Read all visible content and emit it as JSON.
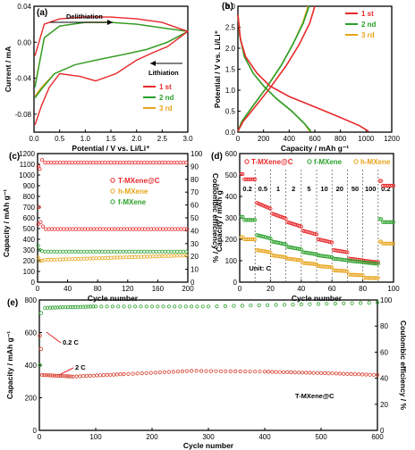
{
  "colors": {
    "first": "#e8282a",
    "second": "#2aa02b",
    "third": "#e8a318",
    "cycle": "#d63c2a"
  },
  "chart_data": [
    {
      "panel": "(a)",
      "type": "line",
      "xlabel": "Potential / V vs. Li/Li⁺",
      "ylabel": "Current / mA",
      "xlim": [
        0,
        3.0
      ],
      "ylim": [
        -0.1,
        0.04
      ],
      "xticks": [
        "0.0",
        "0.5",
        "1.0",
        "1.5",
        "2.0",
        "2.5",
        "3.0"
      ],
      "yticks": [
        "0.04",
        "0.00",
        "-0.04",
        "-0.08"
      ],
      "annotations": [
        "Delithiation",
        "Lithiation"
      ],
      "legend_position": "bottom-right",
      "series": [
        {
          "name": "1 st",
          "upper": [
            [
              0.02,
              -0.015
            ],
            [
              0.2,
              0.02
            ],
            [
              0.5,
              0.026
            ],
            [
              1.0,
              0.028
            ],
            [
              1.5,
              0.028
            ],
            [
              2.0,
              0.026
            ],
            [
              2.5,
              0.022
            ],
            [
              2.8,
              0.016
            ],
            [
              3.0,
              0.012
            ]
          ],
          "lower": [
            [
              3.0,
              0.012
            ],
            [
              2.6,
              -0.005
            ],
            [
              2.3,
              -0.012
            ],
            [
              2.0,
              -0.02
            ],
            [
              1.6,
              -0.035
            ],
            [
              1.2,
              -0.043
            ],
            [
              0.9,
              -0.038
            ],
            [
              0.5,
              -0.035
            ],
            [
              0.3,
              -0.05
            ],
            [
              0.15,
              -0.07
            ],
            [
              0.02,
              -0.092
            ]
          ]
        },
        {
          "name": "2 nd",
          "upper": [
            [
              0.02,
              -0.05
            ],
            [
              0.2,
              0.005
            ],
            [
              0.5,
              0.018
            ],
            [
              1.0,
              0.022
            ],
            [
              1.5,
              0.022
            ],
            [
              2.0,
              0.02
            ],
            [
              2.5,
              0.016
            ],
            [
              3.0,
              0.012
            ]
          ],
          "lower": [
            [
              3.0,
              0.012
            ],
            [
              2.6,
              0.0
            ],
            [
              2.2,
              -0.008
            ],
            [
              1.8,
              -0.013
            ],
            [
              1.2,
              -0.02
            ],
            [
              0.8,
              -0.025
            ],
            [
              0.4,
              -0.035
            ],
            [
              0.15,
              -0.052
            ],
            [
              0.02,
              -0.062
            ]
          ]
        },
        {
          "name": "3 rd",
          "upper": [
            [
              0.02,
              -0.048
            ],
            [
              0.2,
              0.005
            ],
            [
              0.5,
              0.018
            ],
            [
              1.0,
              0.022
            ],
            [
              1.5,
              0.022
            ],
            [
              2.0,
              0.02
            ],
            [
              2.5,
              0.016
            ],
            [
              3.0,
              0.012
            ]
          ],
          "lower": [
            [
              3.0,
              0.012
            ],
            [
              2.6,
              0.0
            ],
            [
              2.2,
              -0.008
            ],
            [
              1.8,
              -0.013
            ],
            [
              1.2,
              -0.02
            ],
            [
              0.8,
              -0.025
            ],
            [
              0.4,
              -0.035
            ],
            [
              0.15,
              -0.05
            ],
            [
              0.02,
              -0.06
            ]
          ]
        }
      ]
    },
    {
      "panel": "(b)",
      "type": "line",
      "xlabel": "Capacity / mAh g⁻¹",
      "ylabel": "Potential / V vs. Li/Li⁺",
      "xlim": [
        0,
        1200
      ],
      "ylim": [
        0,
        3.0
      ],
      "xticks": [
        "0",
        "200",
        "400",
        "600",
        "800",
        "1000",
        "1200"
      ],
      "yticks": [
        "0.0",
        "0.5",
        "1.0",
        "1.5",
        "2.0",
        "2.5",
        "3.0"
      ],
      "legend_position": "top-right",
      "series": [
        {
          "name": "1 st",
          "discharge": [
            [
              0,
              2.8
            ],
            [
              20,
              2.2
            ],
            [
              60,
              1.8
            ],
            [
              150,
              1.4
            ],
            [
              250,
              1.1
            ],
            [
              400,
              0.85
            ],
            [
              600,
              0.6
            ],
            [
              800,
              0.35
            ],
            [
              950,
              0.15
            ],
            [
              1020,
              0.02
            ]
          ],
          "charge": [
            [
              0,
              0.02
            ],
            [
              40,
              0.25
            ],
            [
              120,
              0.55
            ],
            [
              250,
              1.05
            ],
            [
              380,
              1.6
            ],
            [
              480,
              2.1
            ],
            [
              560,
              2.6
            ],
            [
              600,
              3.0
            ]
          ]
        },
        {
          "name": "2 nd",
          "discharge": [
            [
              0,
              2.8
            ],
            [
              15,
              2.3
            ],
            [
              50,
              1.8
            ],
            [
              120,
              1.4
            ],
            [
              200,
              1.1
            ],
            [
              300,
              0.8
            ],
            [
              420,
              0.5
            ],
            [
              520,
              0.2
            ],
            [
              570,
              0.02
            ]
          ],
          "charge": [
            [
              0,
              0.02
            ],
            [
              30,
              0.25
            ],
            [
              100,
              0.55
            ],
            [
              220,
              1.05
            ],
            [
              340,
              1.6
            ],
            [
              430,
              2.1
            ],
            [
              510,
              2.6
            ],
            [
              555,
              3.0
            ]
          ]
        },
        {
          "name": "3 rd",
          "discharge": [
            [
              0,
              2.8
            ],
            [
              15,
              2.3
            ],
            [
              50,
              1.8
            ],
            [
              120,
              1.4
            ],
            [
              200,
              1.1
            ],
            [
              300,
              0.8
            ],
            [
              420,
              0.5
            ],
            [
              520,
              0.2
            ],
            [
              560,
              0.02
            ]
          ],
          "charge": [
            [
              0,
              0.02
            ],
            [
              30,
              0.25
            ],
            [
              100,
              0.55
            ],
            [
              220,
              1.05
            ],
            [
              340,
              1.6
            ],
            [
              430,
              2.1
            ],
            [
              505,
              2.6
            ],
            [
              548,
              3.0
            ]
          ]
        }
      ]
    },
    {
      "panel": "(c)",
      "type": "scatter",
      "xlabel": "Cycle number",
      "ylabel": "Capacity / mAh g⁻¹",
      "y2label": "Coulombic efficiency / %",
      "xlim": [
        0,
        200
      ],
      "ylim": [
        0,
        1200
      ],
      "y2lim": [
        0,
        100
      ],
      "xticks": [
        "0",
        "40",
        "80",
        "120",
        "160",
        "200"
      ],
      "yticks": [
        "0",
        "100",
        "200",
        "300",
        "400",
        "500",
        "600",
        "700",
        "800",
        "900",
        "1000",
        "1100",
        "1200"
      ],
      "y2ticks": [
        "0",
        "10",
        "20",
        "30",
        "40",
        "50",
        "60",
        "70",
        "80",
        "90",
        "100"
      ],
      "legend_position": "center-right",
      "series": [
        {
          "name": "T-MXene@C",
          "start": [
            [
              1,
              1080
            ],
            [
              2,
              700
            ],
            [
              4,
              560
            ],
            [
              7,
              520
            ]
          ],
          "plateau": 495
        },
        {
          "name": "h-MXene",
          "start": [
            [
              1,
              230
            ],
            [
              3,
              200
            ],
            [
              6,
              200
            ]
          ],
          "plateau_from": 205,
          "plateau_to": 250
        },
        {
          "name": "f-MXene",
          "start": [
            [
              1,
              340
            ],
            [
              3,
              300
            ],
            [
              6,
              290
            ]
          ],
          "plateau": 285
        },
        {
          "name": "Coulombic efficiency",
          "start": [
            [
              1,
              45
            ],
            [
              3,
              88
            ],
            [
              6,
              95
            ]
          ],
          "plateau": 93
        }
      ]
    },
    {
      "panel": "(d)",
      "type": "scatter",
      "xlabel": "Cycle number",
      "ylabel": "Capacity / mAh g⁻¹",
      "xlim": [
        0,
        100
      ],
      "ylim": [
        0,
        600
      ],
      "xticks": [
        "0",
        "20",
        "40",
        "60",
        "80",
        "100"
      ],
      "yticks": [
        "0",
        "100",
        "200",
        "300",
        "400",
        "500",
        "600"
      ],
      "rate_labels": [
        "0.2",
        "0.5",
        "1",
        "2",
        "5",
        "10",
        "20",
        "50",
        "100",
        "0.2"
      ],
      "unit_label": "Unit: C",
      "legend_position": "top",
      "series": [
        {
          "name": "T-MXene@C",
          "steps": [
            480,
            370,
            320,
            280,
            240,
            200,
            150,
            110,
            100,
            450
          ]
        },
        {
          "name": "f-MXene",
          "steps": [
            290,
            220,
            190,
            165,
            140,
            125,
            110,
            100,
            92,
            280
          ]
        },
        {
          "name": "h-MXene",
          "steps": [
            200,
            150,
            125,
            110,
            90,
            75,
            55,
            35,
            20,
            180
          ]
        }
      ]
    },
    {
      "panel": "(e)",
      "type": "scatter",
      "xlabel": "Cycle number",
      "ylabel": "Capacity / mAh g⁻¹",
      "y2label": "Coulombic efficiency / %",
      "xlim": [
        0,
        600
      ],
      "ylim": [
        0,
        800
      ],
      "y2lim": [
        0,
        100
      ],
      "xticks": [
        "0",
        "100",
        "200",
        "300",
        "400",
        "500",
        "600"
      ],
      "yticks": [
        "0",
        "200",
        "400",
        "600",
        "800"
      ],
      "y2ticks": [
        "0",
        "20",
        "40",
        "60",
        "80",
        "100"
      ],
      "annotations": [
        "0.2 C",
        "2 C",
        "T-MXene@C"
      ],
      "series": [
        {
          "name": "T-MXene@C",
          "points": [
            [
              1,
              580
            ],
            [
              3,
              500
            ],
            [
              5,
              340
            ],
            [
              60,
              330
            ],
            [
              150,
              345
            ],
            [
              270,
              365
            ],
            [
              400,
              360
            ],
            [
              500,
              352
            ],
            [
              600,
              340
            ]
          ]
        },
        {
          "name": "Coulombic efficiency",
          "points": [
            [
              1,
              50
            ],
            [
              3,
              90
            ],
            [
              10,
              94
            ],
            [
              100,
              95
            ],
            [
              300,
              95
            ],
            [
              600,
              98
            ]
          ]
        }
      ]
    }
  ]
}
